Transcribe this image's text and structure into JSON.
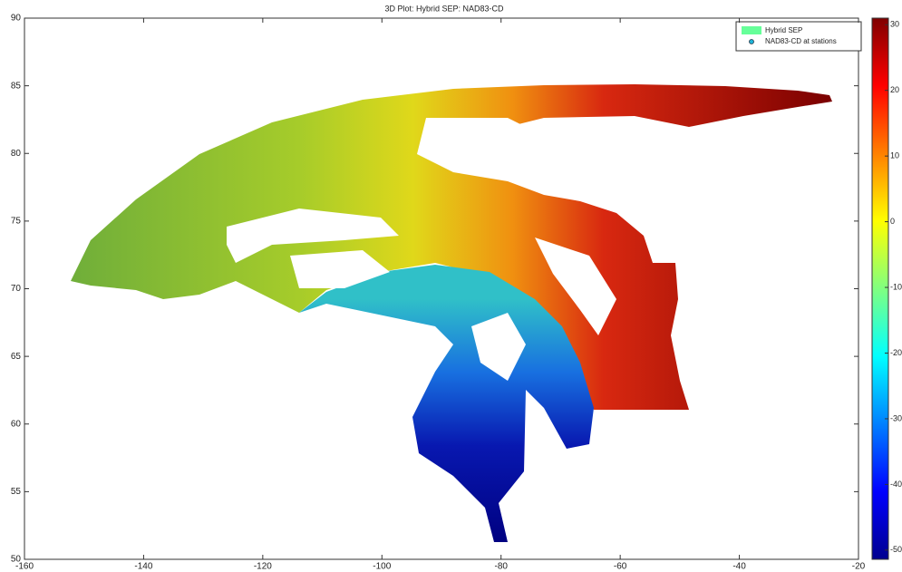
{
  "chart_data": {
    "type": "surface",
    "title": "3D Plot: Hybrid SEP: NAD83-CD",
    "xlim": [
      -160,
      -20
    ],
    "xticks": [
      -160,
      -140,
      -120,
      -100,
      -80,
      -60,
      -40,
      -20
    ],
    "ylim": [
      50,
      90
    ],
    "yticks": [
      50,
      55,
      60,
      65,
      70,
      75,
      80,
      85,
      90
    ],
    "series": [
      {
        "name": "Hybrid SEP",
        "color": "#66ff99"
      },
      {
        "name": "NAD83-CD at stations",
        "color": "#1fb4d8"
      }
    ],
    "legend": "upper right",
    "colorbar": {
      "clim": [
        -51.4,
        31
      ],
      "ticks": [
        -50,
        -40,
        -30,
        -20,
        -10,
        0,
        10,
        20,
        30
      ],
      "colormap": [
        "#00008f",
        "#0000ff",
        "#0080ff",
        "#00ffff",
        "#80ff80",
        "#ffff00",
        "#ff8000",
        "#ff0000",
        "#800000"
      ]
    }
  }
}
